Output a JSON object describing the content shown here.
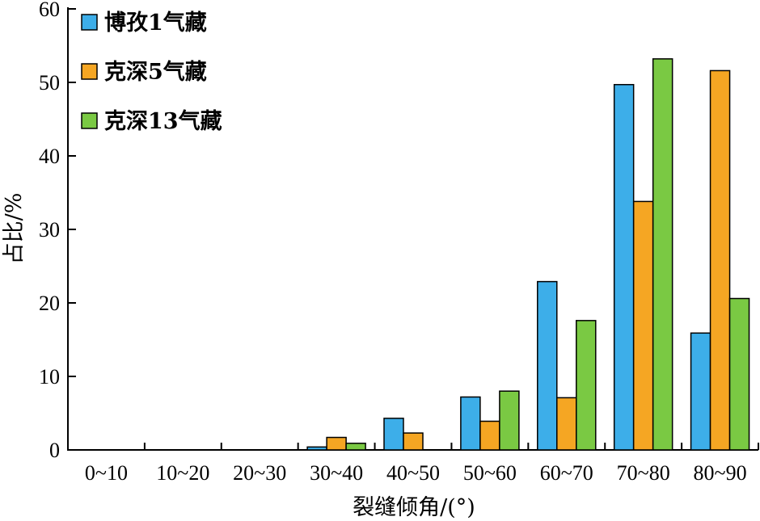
{
  "chart_data": {
    "type": "bar",
    "title": "",
    "xlabel": "裂缝倾角/(°)",
    "ylabel": "占比/%",
    "ylim": [
      0,
      60
    ],
    "yticks": [
      0,
      10,
      20,
      30,
      40,
      50,
      60
    ],
    "grid": false,
    "legend_position": "top-left",
    "categories": [
      "0~10",
      "10~20",
      "20~30",
      "30~40",
      "40~50",
      "50~60",
      "60~70",
      "70~80",
      "80~90"
    ],
    "series": [
      {
        "name": "博孜1气藏",
        "color": "#3daee9",
        "values": [
          0,
          0,
          0,
          0.4,
          4.3,
          7.2,
          22.9,
          49.7,
          15.9
        ]
      },
      {
        "name": "克深5气藏",
        "color": "#f5a623",
        "values": [
          0,
          0,
          0,
          1.7,
          2.3,
          3.9,
          7.1,
          33.8,
          51.6
        ]
      },
      {
        "name": "克深13气藏",
        "color": "#7ac943",
        "values": [
          0,
          0,
          0,
          0.9,
          0,
          8.0,
          17.6,
          53.2,
          20.6
        ]
      }
    ]
  }
}
